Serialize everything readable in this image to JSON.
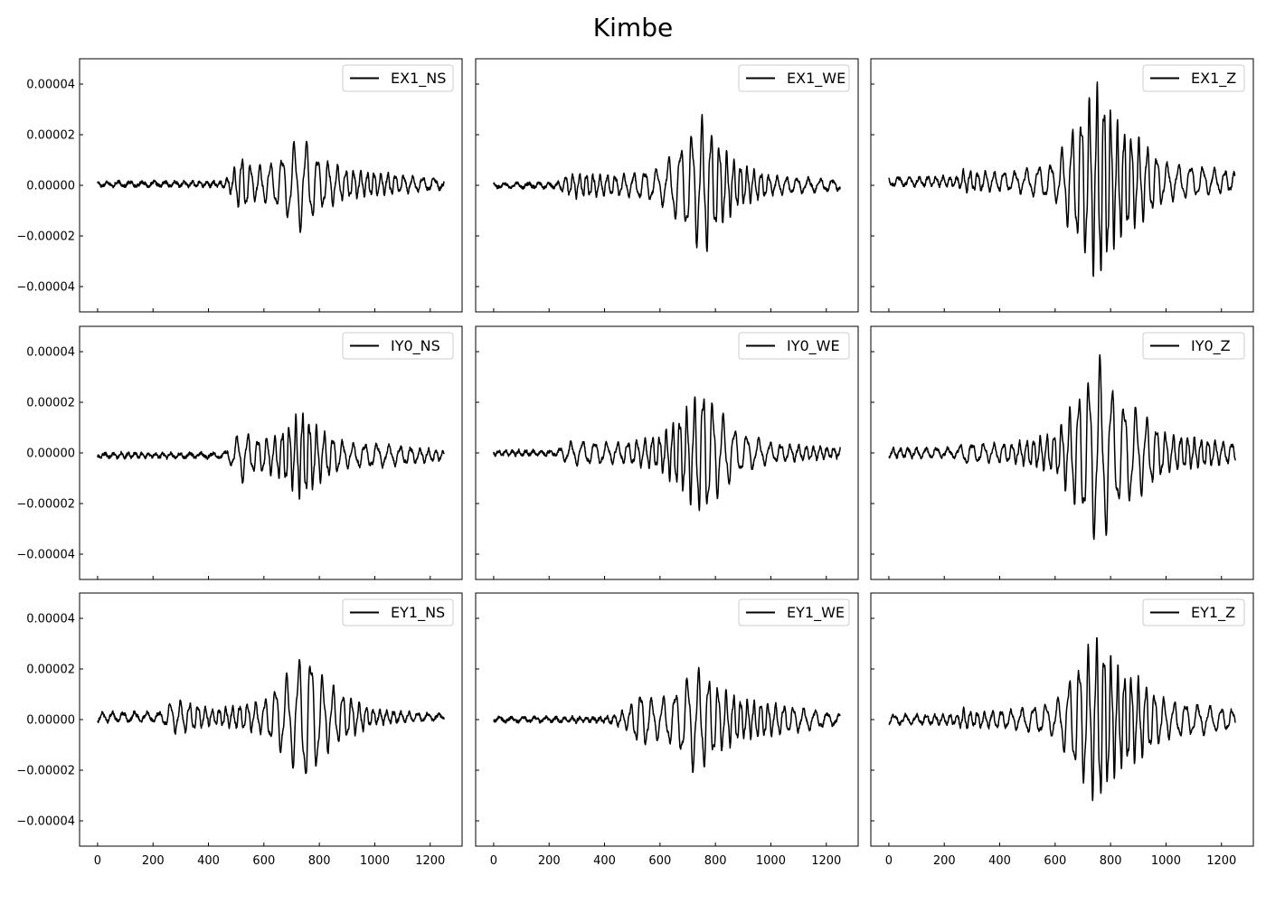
{
  "figure": {
    "title": "Kimbe"
  },
  "chart_data": {
    "type": "line",
    "title": "Kimbe",
    "shared_axes": true,
    "xlim": [
      -65,
      1315
    ],
    "ylim": [
      -5e-05,
      5e-05
    ],
    "xticks": [
      0,
      200,
      400,
      600,
      800,
      1000,
      1200
    ],
    "xtick_labels": [
      "0",
      "200",
      "400",
      "600",
      "800",
      "1000",
      "1200"
    ],
    "yticks": [
      4e-05,
      2e-05,
      0.0,
      -2e-05,
      -4e-05
    ],
    "ytick_labels": [
      "0.00004",
      "0.00002",
      "0.00000",
      "−0.00002",
      "−0.00004"
    ],
    "tick_direction": "in",
    "grid": false,
    "legend_position": "upper right",
    "line_color": "#000000",
    "x_range": [
      0,
      1250
    ],
    "panels": [
      {
        "series": "EX1_NS",
        "offset": 5e-07,
        "envelope": [
          [
            0,
            1e-06
          ],
          [
            450,
            1e-06
          ],
          [
            480,
            4e-06
          ],
          [
            520,
            1.2e-05
          ],
          [
            560,
            7e-06
          ],
          [
            640,
            9e-06
          ],
          [
            700,
            1.6e-05
          ],
          [
            740,
            2e-05
          ],
          [
            800,
            1.1e-05
          ],
          [
            900,
            6e-06
          ],
          [
            1000,
            5e-06
          ],
          [
            1250,
            2e-06
          ]
        ]
      },
      {
        "series": "EX1_WE",
        "offset": 0.0,
        "envelope": [
          [
            0,
            1e-06
          ],
          [
            230,
            1e-06
          ],
          [
            260,
            4e-06
          ],
          [
            300,
            5e-06
          ],
          [
            450,
            4e-06
          ],
          [
            600,
            7e-06
          ],
          [
            700,
            2e-05
          ],
          [
            760,
            2.9e-05
          ],
          [
            800,
            2e-05
          ],
          [
            880,
            9e-06
          ],
          [
            1000,
            4e-06
          ],
          [
            1250,
            2e-06
          ]
        ]
      },
      {
        "series": "EX1_Z",
        "offset": 1.5e-06,
        "envelope": [
          [
            0,
            2e-06
          ],
          [
            250,
            2e-06
          ],
          [
            270,
            5e-06
          ],
          [
            300,
            4e-06
          ],
          [
            450,
            4e-06
          ],
          [
            600,
            8e-06
          ],
          [
            690,
            2.8e-05
          ],
          [
            760,
            4.2e-05
          ],
          [
            820,
            2.5e-05
          ],
          [
            900,
            1.8e-05
          ],
          [
            1000,
            8e-06
          ],
          [
            1250,
            4e-06
          ]
        ]
      },
      {
        "series": "IY0_NS",
        "offset": -1e-06,
        "envelope": [
          [
            0,
            1e-06
          ],
          [
            450,
            1e-06
          ],
          [
            480,
            4e-06
          ],
          [
            520,
            1.1e-05
          ],
          [
            560,
            7e-06
          ],
          [
            640,
            8e-06
          ],
          [
            700,
            1.4e-05
          ],
          [
            740,
            1.9e-05
          ],
          [
            800,
            1.1e-05
          ],
          [
            900,
            5e-06
          ],
          [
            1000,
            5e-06
          ],
          [
            1250,
            2e-06
          ]
        ]
      },
      {
        "series": "IY0_WE",
        "offset": 0.0,
        "envelope": [
          [
            0,
            1e-06
          ],
          [
            230,
            1e-06
          ],
          [
            260,
            4e-06
          ],
          [
            300,
            5e-06
          ],
          [
            450,
            4e-06
          ],
          [
            600,
            7e-06
          ],
          [
            700,
            1.9e-05
          ],
          [
            760,
            2.8e-05
          ],
          [
            800,
            1.9e-05
          ],
          [
            880,
            9e-06
          ],
          [
            1000,
            4e-06
          ],
          [
            1250,
            2e-06
          ]
        ]
      },
      {
        "series": "IY0_Z",
        "offset": 0.0,
        "envelope": [
          [
            0,
            2e-06
          ],
          [
            250,
            2e-06
          ],
          [
            270,
            5e-06
          ],
          [
            300,
            4e-06
          ],
          [
            450,
            4e-06
          ],
          [
            600,
            8e-06
          ],
          [
            690,
            2.6e-05
          ],
          [
            760,
            3.9e-05
          ],
          [
            820,
            2.4e-05
          ],
          [
            900,
            1.8e-05
          ],
          [
            1000,
            8e-06
          ],
          [
            1250,
            4e-06
          ]
        ]
      },
      {
        "series": "EY1_NS",
        "offset": 1e-06,
        "envelope": [
          [
            0,
            2e-06
          ],
          [
            230,
            2e-06
          ],
          [
            260,
            6e-06
          ],
          [
            300,
            7e-06
          ],
          [
            420,
            3e-06
          ],
          [
            600,
            7e-06
          ],
          [
            700,
            2e-05
          ],
          [
            760,
            2.9e-05
          ],
          [
            820,
            1.5e-05
          ],
          [
            900,
            9e-06
          ],
          [
            1000,
            3e-06
          ],
          [
            1250,
            1e-06
          ]
        ]
      },
      {
        "series": "EY1_WE",
        "offset": 0.0,
        "envelope": [
          [
            0,
            1e-06
          ],
          [
            400,
            1e-06
          ],
          [
            480,
            4e-06
          ],
          [
            530,
            1.2e-05
          ],
          [
            580,
            8e-06
          ],
          [
            650,
            1.1e-05
          ],
          [
            720,
            2.1e-05
          ],
          [
            760,
            2e-05
          ],
          [
            820,
            1.3e-05
          ],
          [
            900,
            8e-06
          ],
          [
            1000,
            7e-06
          ],
          [
            1250,
            2e-06
          ]
        ]
      },
      {
        "series": "EY1_Z",
        "offset": 0.0,
        "envelope": [
          [
            0,
            2e-06
          ],
          [
            250,
            2e-06
          ],
          [
            270,
            5e-06
          ],
          [
            300,
            3e-06
          ],
          [
            450,
            4e-06
          ],
          [
            600,
            7e-06
          ],
          [
            690,
            2.5e-05
          ],
          [
            760,
            3.6e-05
          ],
          [
            820,
            2.2e-05
          ],
          [
            900,
            1.7e-05
          ],
          [
            1000,
            8e-06
          ],
          [
            1250,
            4e-06
          ]
        ]
      }
    ]
  }
}
